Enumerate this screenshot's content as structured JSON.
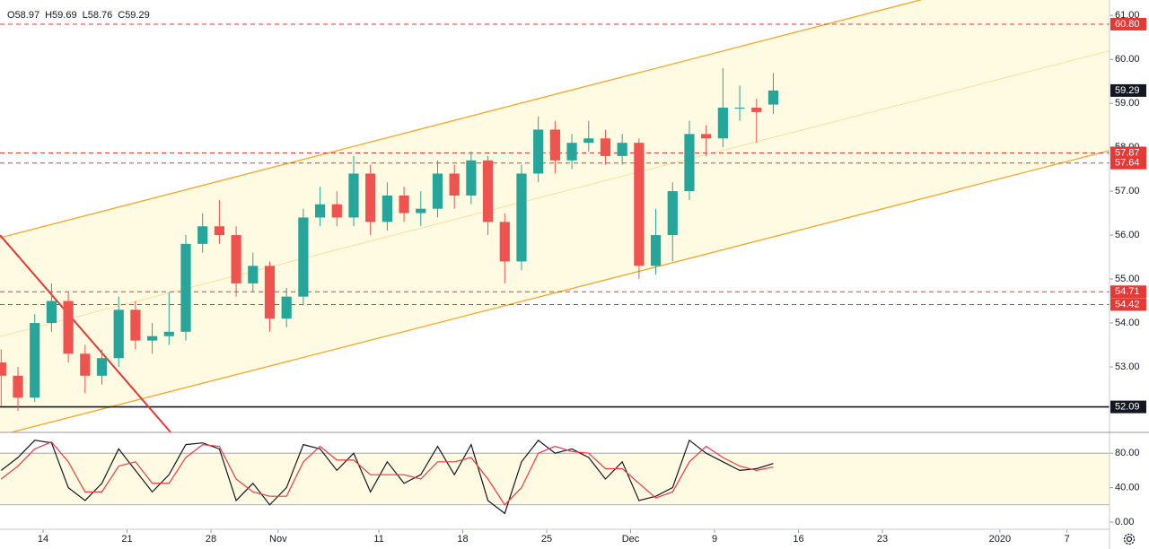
{
  "chart_data": [
    {
      "type": "candlestick",
      "header": [
        {
          "label": "O",
          "value": 58.97
        },
        {
          "label": "H",
          "value": 59.69
        },
        {
          "label": "L",
          "value": 58.76
        },
        {
          "label": "C",
          "value": 59.29
        }
      ],
      "x": [
        -2.5,
        -1.5,
        -0.5,
        0.5,
        1.5,
        2.5,
        3.5,
        4.5,
        5.5,
        6.5,
        7.5,
        8.5,
        9.5,
        10.5,
        11.5,
        12.5,
        13.5,
        14.5,
        15.5,
        16.5,
        17.5,
        18.5,
        19.5,
        20.5,
        21.5,
        22.5,
        23.5,
        24.5,
        25.5,
        26.5,
        27.5,
        28.5,
        29.5,
        30.5,
        31.5,
        32.5,
        33.5,
        34.5,
        35.5,
        36.5,
        37.5,
        38.5,
        39.5,
        40.5,
        41.5,
        42.5,
        43.5
      ],
      "open": [
        53.1,
        52.8,
        52.3,
        54.0,
        54.5,
        53.3,
        52.8,
        53.2,
        54.3,
        53.6,
        53.7,
        53.8,
        55.8,
        56.2,
        56.0,
        54.9,
        55.3,
        54.1,
        54.6,
        56.4,
        56.7,
        56.4,
        57.4,
        56.3,
        56.9,
        56.5,
        56.6,
        57.4,
        56.9,
        57.7,
        56.3,
        55.4,
        57.4,
        58.4,
        57.7,
        58.1,
        58.2,
        57.8,
        58.1,
        55.3,
        56.0,
        57.0,
        58.3,
        58.2,
        58.9,
        58.9,
        58.97
      ],
      "high": [
        53.4,
        53.0,
        54.2,
        54.9,
        54.7,
        53.5,
        53.4,
        54.6,
        54.5,
        54.0,
        54.7,
        56.0,
        56.5,
        56.8,
        56.2,
        55.6,
        55.4,
        54.8,
        56.6,
        57.1,
        57.0,
        57.8,
        57.6,
        57.2,
        57.1,
        57.0,
        57.7,
        57.6,
        57.9,
        57.8,
        56.5,
        57.6,
        58.7,
        58.6,
        58.3,
        58.6,
        58.4,
        58.3,
        58.2,
        56.6,
        57.2,
        58.6,
        58.5,
        59.8,
        59.4,
        59.1,
        59.69
      ],
      "low": [
        52.1,
        52.0,
        52.2,
        53.8,
        53.1,
        52.4,
        52.6,
        53.0,
        53.4,
        53.3,
        53.5,
        53.6,
        55.6,
        55.8,
        54.6,
        54.7,
        53.8,
        53.9,
        54.4,
        56.2,
        56.2,
        56.2,
        56.0,
        56.1,
        56.3,
        56.2,
        56.4,
        56.6,
        56.7,
        56.0,
        54.9,
        55.2,
        57.2,
        57.4,
        57.5,
        57.9,
        57.6,
        57.6,
        55.0,
        55.1,
        55.4,
        56.8,
        57.8,
        58.0,
        58.6,
        58.1,
        58.76
      ],
      "close": [
        52.8,
        52.3,
        54.0,
        54.5,
        53.3,
        52.8,
        53.2,
        54.3,
        53.6,
        53.7,
        53.8,
        55.8,
        56.2,
        56.0,
        54.9,
        55.3,
        54.1,
        54.6,
        56.4,
        56.7,
        56.4,
        57.4,
        56.3,
        56.9,
        56.5,
        56.6,
        57.4,
        56.9,
        57.7,
        56.3,
        55.4,
        57.4,
        58.4,
        57.7,
        58.1,
        58.2,
        57.8,
        58.1,
        55.3,
        56.0,
        57.0,
        58.3,
        58.2,
        58.9,
        58.9,
        58.8,
        59.29
      ],
      "up_color": "#26a69a",
      "down_color": "#ef5350",
      "xlim": [
        -2.57,
        63.53
      ],
      "ylim": [
        51.51,
        61.35
      ],
      "yticks": [
        {
          "value": 53,
          "label": "53.00"
        },
        {
          "value": 54,
          "label": "54.00"
        },
        {
          "value": 55,
          "label": "55.00"
        },
        {
          "value": 56,
          "label": "56.00"
        },
        {
          "value": 57,
          "label": "57.00"
        },
        {
          "value": 58,
          "label": "58.00"
        },
        {
          "value": 59,
          "label": "59.00"
        },
        {
          "value": 60,
          "label": "60.00"
        },
        {
          "value": 61,
          "label": "61.00"
        }
      ],
      "last_price": 59.29,
      "levels": [
        {
          "value": 60.8,
          "label": "60.80",
          "color": "#e53935",
          "style": "dashed"
        },
        {
          "value": 57.87,
          "label": "57.87",
          "color": "#e53935",
          "style": "dashed"
        },
        {
          "value": 57.64,
          "label": "57.64",
          "color": "#e53935",
          "style": "dashed"
        },
        {
          "value": 54.71,
          "label": "54.71",
          "color": "#e53935",
          "style": "dashed"
        },
        {
          "value": 54.42,
          "label": "54.42",
          "color": "#e53935",
          "style": "dashed"
        },
        {
          "value": 52.09,
          "label": "52.09",
          "color": "#131722",
          "style": "solid"
        }
      ],
      "channel": {
        "color": "#f5a623",
        "fill": "#fffbe3",
        "upper": [
          [
            -2.57,
            55.94
          ],
          [
            52.25,
            61.35
          ]
        ],
        "lower": [
          [
            -1.5,
            51.55
          ],
          [
            63.5,
            57.92
          ]
        ]
      },
      "trendline": {
        "color": "#e53935",
        "points": [
          [
            -2.57,
            56.0
          ],
          [
            7.6,
            51.51
          ]
        ]
      }
    },
    {
      "type": "line",
      "x": [
        -2.5,
        -1.5,
        -0.5,
        0.5,
        1.5,
        2.5,
        3.5,
        4.5,
        5.5,
        6.5,
        7.5,
        8.5,
        9.5,
        10.5,
        11.5,
        12.5,
        13.5,
        14.5,
        15.5,
        16.5,
        17.5,
        18.5,
        19.5,
        20.5,
        21.5,
        22.5,
        23.5,
        24.5,
        25.5,
        26.5,
        27.5,
        28.5,
        29.5,
        30.5,
        31.5,
        32.5,
        33.5,
        34.5,
        35.5,
        36.5,
        37.5,
        38.5,
        39.5,
        40.5,
        41.5,
        42.5,
        43.5
      ],
      "series": [
        {
          "color": "#131722",
          "values": [
            60,
            75,
            95,
            92,
            40,
            25,
            45,
            85,
            60,
            35,
            55,
            90,
            92,
            85,
            25,
            45,
            20,
            40,
            90,
            85,
            60,
            80,
            35,
            70,
            45,
            55,
            88,
            55,
            90,
            25,
            10,
            70,
            95,
            80,
            85,
            75,
            50,
            70,
            25,
            30,
            40,
            95,
            80,
            70,
            60,
            62,
            68
          ]
        },
        {
          "color": "#f23645",
          "values": [
            50,
            65,
            85,
            93,
            70,
            35,
            35,
            65,
            70,
            45,
            45,
            75,
            90,
            88,
            50,
            35,
            30,
            30,
            70,
            88,
            72,
            72,
            55,
            55,
            55,
            50,
            70,
            70,
            75,
            50,
            20,
            40,
            80,
            88,
            82,
            80,
            62,
            62,
            45,
            28,
            35,
            70,
            88,
            75,
            65,
            60,
            64
          ]
        }
      ],
      "band": [
        20,
        80
      ],
      "band_color": "#fffbe3",
      "xlim": [
        -2.57,
        63.53
      ],
      "ylim": [
        -8.4,
        104.2
      ],
      "yticks": [
        {
          "value": 0,
          "label": "0.00"
        },
        {
          "value": 40,
          "label": "40.00"
        },
        {
          "value": 80,
          "label": "80.00"
        }
      ],
      "xticks": [
        {
          "value": 0,
          "label": "14"
        },
        {
          "value": 5,
          "label": "21"
        },
        {
          "value": 10,
          "label": "28"
        },
        {
          "value": 14,
          "label": "Nov"
        },
        {
          "value": 20,
          "label": "11"
        },
        {
          "value": 25,
          "label": "18"
        },
        {
          "value": 30,
          "label": "25"
        },
        {
          "value": 35,
          "label": "Dec"
        },
        {
          "value": 40,
          "label": "9"
        },
        {
          "value": 45,
          "label": "16"
        },
        {
          "value": 50,
          "label": "23"
        },
        {
          "value": 57,
          "label": "2020"
        },
        {
          "value": 61,
          "label": "7"
        }
      ]
    }
  ]
}
